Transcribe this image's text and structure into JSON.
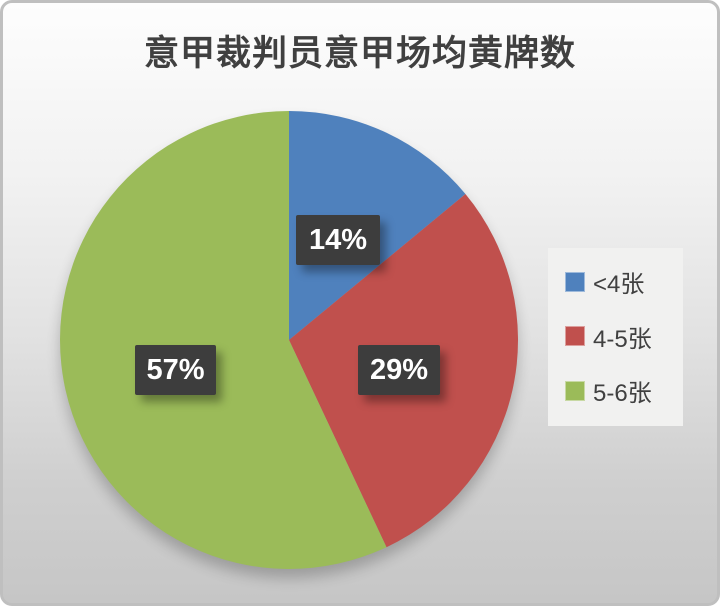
{
  "chart_data": {
    "type": "pie",
    "title": "意甲裁判员意甲场均黄牌数",
    "categories": [
      "<4张",
      "4-5张",
      "5-6张"
    ],
    "values": [
      14,
      29,
      57
    ],
    "unit": "%",
    "display_labels": [
      "14%",
      "29%",
      "57%"
    ],
    "colors": [
      "#4f81bd",
      "#c0504d",
      "#9bbb59"
    ],
    "start_angle_deg": 0,
    "direction": "clockwise",
    "legend_position": "right",
    "label_box_color": "#3d3d3d",
    "label_text_color": "#ffffff",
    "grid": false
  },
  "legend": {
    "items": [
      {
        "label": "<4张",
        "color": "#4f81bd"
      },
      {
        "label": "4-5张",
        "color": "#c0504d"
      },
      {
        "label": "5-6张",
        "color": "#9bbb59"
      }
    ]
  }
}
